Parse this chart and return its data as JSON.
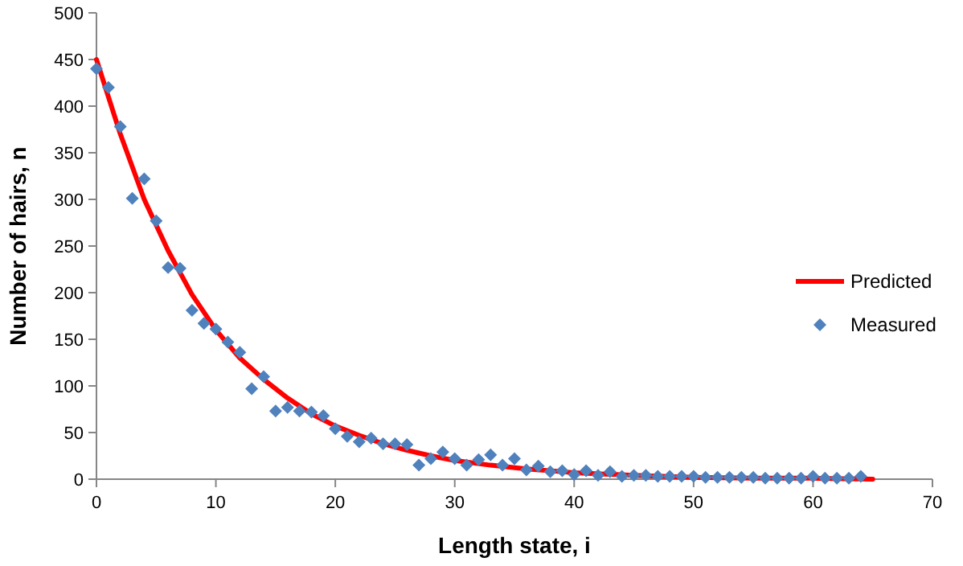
{
  "chart_data": {
    "type": "scatter",
    "xlabel": "Length state, i",
    "ylabel": "Number of hairs, n",
    "xlim": [
      0,
      70
    ],
    "xticks": [
      0,
      10,
      20,
      30,
      40,
      50,
      60,
      70
    ],
    "ylim": [
      0,
      500
    ],
    "yticks": [
      0,
      50,
      100,
      150,
      200,
      250,
      300,
      350,
      400,
      450,
      500
    ],
    "grid": false,
    "legend": "right",
    "series": [
      {
        "name": "Predicted",
        "type": "line",
        "color": "#ff0000",
        "marker": "none",
        "line_style": "solid",
        "x": [
          0,
          2,
          4,
          6,
          8,
          10,
          12,
          14,
          16,
          18,
          20,
          22,
          24,
          26,
          28,
          30,
          33,
          36,
          40,
          45,
          50,
          55,
          60,
          65
        ],
        "values": [
          450,
          370,
          300,
          245,
          198,
          160,
          130,
          107,
          87,
          70,
          57,
          47,
          38,
          31,
          25,
          20,
          15,
          11,
          7,
          4,
          2,
          1,
          1,
          0
        ]
      },
      {
        "name": "Measured",
        "color": "#4f81bd",
        "marker": "diamond",
        "x": [
          0,
          1,
          2,
          3,
          4,
          5,
          6,
          7,
          8,
          9,
          10,
          11,
          12,
          13,
          14,
          15,
          16,
          17,
          18,
          19,
          20,
          21,
          22,
          23,
          24,
          25,
          26,
          27,
          28,
          29,
          30,
          31,
          32,
          33,
          34,
          35,
          36,
          37,
          38,
          39,
          40,
          41,
          42,
          43,
          44,
          45,
          46,
          47,
          48,
          49,
          50,
          51,
          52,
          53,
          54,
          55,
          56,
          57,
          58,
          59,
          60,
          61,
          62,
          63,
          64
        ],
        "values": [
          440,
          420,
          378,
          301,
          322,
          277,
          227,
          226,
          181,
          167,
          161,
          147,
          136,
          97,
          110,
          73,
          77,
          73,
          72,
          68,
          54,
          46,
          40,
          44,
          38,
          38,
          37,
          15,
          22,
          29,
          22,
          15,
          21,
          26,
          15,
          22,
          10,
          14,
          8,
          9,
          5,
          9,
          4,
          8,
          3,
          4,
          4,
          3,
          3,
          3,
          3,
          2,
          2,
          2,
          2,
          2,
          1,
          1,
          1,
          1,
          3,
          1,
          1,
          1,
          3
        ]
      }
    ]
  }
}
